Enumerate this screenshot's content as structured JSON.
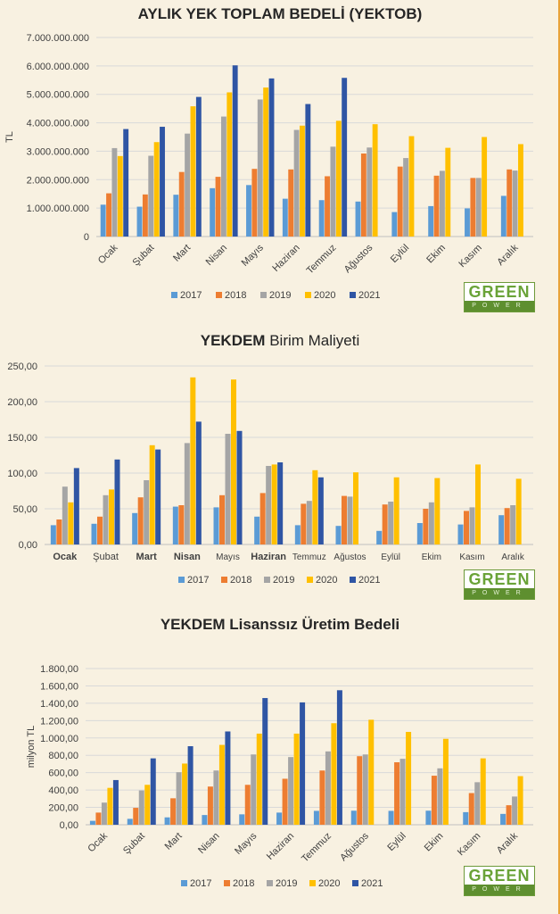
{
  "brand": {
    "name": "GREEN",
    "sub": "POWER"
  },
  "colors": {
    "2017": "#5b9bd5",
    "2018": "#ed7d31",
    "2019": "#a5a5a5",
    "2020": "#ffc000",
    "2021": "#2f55a4"
  },
  "chart_data": [
    {
      "type": "bar",
      "title": "AYLIK YEK TOPLAM BEDELİ (YEKTOB)",
      "title_parts": [],
      "ylabel": "TL",
      "categories": [
        "Ocak",
        "Şubat",
        "Mart",
        "Nisan",
        "Mayıs",
        "Haziran",
        "Temmuz",
        "Ağustos",
        "Eylül",
        "Ekim",
        "Kasım",
        "Aralık"
      ],
      "ylim": [
        0,
        7000000000
      ],
      "yticks": [
        "0",
        "1.000.000.000",
        "2.000.000.000",
        "3.000.000.000",
        "4.000.000.000",
        "5.000.000.000",
        "6.000.000.000",
        "7.000.000.000"
      ],
      "series": [
        {
          "name": "2017",
          "values": [
            1120000000,
            1050000000,
            1470000000,
            1700000000,
            1810000000,
            1330000000,
            1280000000,
            1230000000,
            860000000,
            1070000000,
            990000000,
            1430000000
          ]
        },
        {
          "name": "2018",
          "values": [
            1520000000,
            1480000000,
            2270000000,
            2100000000,
            2380000000,
            2360000000,
            2120000000,
            2920000000,
            2460000000,
            2140000000,
            2060000000,
            2360000000
          ]
        },
        {
          "name": "2019",
          "values": [
            3110000000,
            2840000000,
            3620000000,
            4220000000,
            4820000000,
            3750000000,
            3160000000,
            3130000000,
            2760000000,
            2310000000,
            2060000000,
            2320000000
          ]
        },
        {
          "name": "2020",
          "values": [
            2830000000,
            3320000000,
            4580000000,
            5070000000,
            5240000000,
            3900000000,
            4070000000,
            3950000000,
            3530000000,
            3120000000,
            3500000000,
            3250000000
          ]
        },
        {
          "name": "2021",
          "values": [
            3780000000,
            3860000000,
            4910000000,
            6020000000,
            5560000000,
            4660000000,
            5580000000,
            null,
            null,
            null,
            null,
            null
          ]
        }
      ],
      "grid": true,
      "legend": "bottom"
    },
    {
      "type": "bar",
      "title": "",
      "title_parts": [
        "YEKDEM",
        "Birim Maliyeti"
      ],
      "ylabel": "",
      "categories": [
        "Ocak",
        "Şubat",
        "Mart",
        "Nisan",
        "Mayıs",
        "Haziran",
        "Temmuz",
        "Ağustos",
        "Eylül",
        "Ekim",
        "Kasım",
        "Aralık"
      ],
      "ylim": [
        0,
        250
      ],
      "yticks": [
        "0,00",
        "50,00",
        "100,00",
        "150,00",
        "200,00",
        "250,00"
      ],
      "series": [
        {
          "name": "2017",
          "values": [
            27,
            29,
            44,
            53,
            52,
            39,
            27,
            26,
            19,
            30,
            28,
            41
          ]
        },
        {
          "name": "2018",
          "values": [
            35,
            39,
            66,
            55,
            69,
            72,
            57,
            68,
            56,
            50,
            47,
            51
          ]
        },
        {
          "name": "2019",
          "values": [
            81,
            69,
            90,
            142,
            155,
            110,
            61,
            67,
            60,
            59,
            52,
            55
          ]
        },
        {
          "name": "2020",
          "values": [
            59,
            77,
            139,
            234,
            231,
            112,
            104,
            101,
            94,
            93,
            112,
            92
          ]
        },
        {
          "name": "2021",
          "values": [
            107,
            119,
            133,
            172,
            159,
            115,
            94,
            null,
            null,
            null,
            null,
            null
          ]
        }
      ],
      "grid": true,
      "legend": "bottom"
    },
    {
      "type": "bar",
      "title": "YEKDEM Lisanssız Üretim Bedeli",
      "title_parts": [],
      "ylabel": "milyon TL",
      "categories": [
        "Ocak",
        "Şubat",
        "Mart",
        "Nisan",
        "Mayıs",
        "Haziran",
        "Temmuz",
        "Ağustos",
        "Eylül",
        "Ekim",
        "Kasım",
        "Aralık"
      ],
      "ylim": [
        0,
        1800
      ],
      "yticks": [
        "0,00",
        "200,00",
        "400,00",
        "600,00",
        "800,00",
        "1.000,00",
        "1.200,00",
        "1.400,00",
        "1.600,00",
        "1.800,00"
      ],
      "series": [
        {
          "name": "2017",
          "values": [
            45,
            68,
            85,
            112,
            120,
            140,
            160,
            162,
            160,
            162,
            145,
            125
          ]
        },
        {
          "name": "2018",
          "values": [
            140,
            195,
            305,
            440,
            460,
            530,
            625,
            790,
            720,
            565,
            365,
            225
          ]
        },
        {
          "name": "2019",
          "values": [
            255,
            395,
            605,
            625,
            810,
            780,
            845,
            810,
            760,
            650,
            490,
            325
          ]
        },
        {
          "name": "2020",
          "values": [
            425,
            460,
            705,
            920,
            1050,
            1050,
            1170,
            1210,
            1070,
            990,
            765,
            560
          ]
        },
        {
          "name": "2021",
          "values": [
            515,
            765,
            905,
            1075,
            1460,
            1410,
            1550,
            null,
            null,
            null,
            null,
            null
          ]
        }
      ],
      "grid": true,
      "legend": "bottom"
    }
  ]
}
